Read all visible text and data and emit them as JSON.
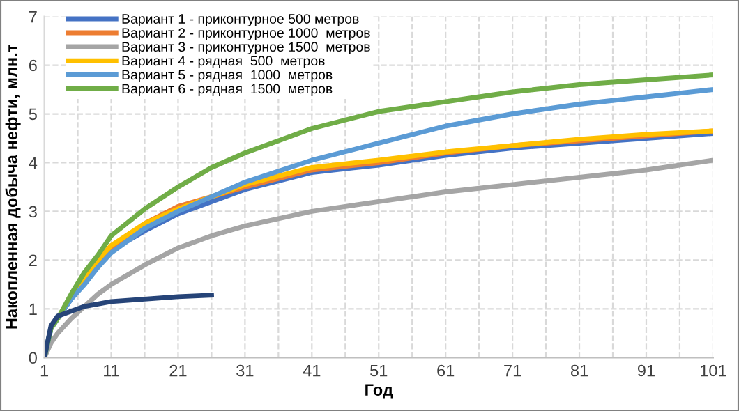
{
  "chart_data": {
    "type": "line",
    "xlabel": "Год",
    "ylabel": "Накопленная добыча нефти, млн.т",
    "x": [
      1,
      2,
      3,
      5,
      7,
      9,
      11,
      16,
      21,
      26,
      31,
      41,
      51,
      61,
      71,
      81,
      91,
      101
    ],
    "series": [
      {
        "name": "Вариант 1 - приконтурное 500 метров",
        "color": "#4472c4",
        "values": [
          0,
          0.6,
          0.8,
          1.2,
          1.55,
          1.9,
          2.2,
          2.6,
          2.95,
          3.2,
          3.45,
          3.8,
          3.95,
          4.15,
          4.3,
          4.4,
          4.5,
          4.6
        ]
      },
      {
        "name": "Вариант 2 - приконтурное 1000  метров",
        "color": "#ed7d31",
        "values": [
          null,
          null,
          null,
          null,
          1.6,
          1.95,
          2.25,
          2.75,
          3.1,
          3.3,
          3.5,
          3.85,
          4.0,
          4.2,
          4.35,
          4.45,
          4.55,
          4.65
        ]
      },
      {
        "name": "Вариант 3 - приконтурное 1500  метров",
        "color": "#a5a5a5",
        "values": [
          0,
          0.3,
          0.5,
          0.8,
          1.05,
          1.3,
          1.5,
          1.9,
          2.25,
          2.5,
          2.7,
          3.0,
          3.2,
          3.4,
          3.55,
          3.7,
          3.85,
          4.05
        ]
      },
      {
        "name": "Вариант 4 - рядная  500  метров",
        "color": "#ffc000",
        "values": [
          null,
          null,
          0.8,
          1.25,
          1.65,
          2.0,
          2.3,
          2.75,
          3.05,
          3.3,
          3.55,
          3.9,
          4.05,
          4.22,
          4.35,
          4.48,
          4.58,
          4.65
        ]
      },
      {
        "name": "Вариант 5 - рядная  1000  метров",
        "color": "#5b9bd5",
        "values": [
          0,
          0.6,
          0.8,
          1.2,
          1.5,
          1.85,
          2.15,
          2.65,
          3.0,
          3.3,
          3.6,
          4.05,
          4.4,
          4.75,
          5.0,
          5.2,
          5.35,
          5.5
        ]
      },
      {
        "name": "Вариант 6 - рядная  1500  метров",
        "color": "#70ad47",
        "values": [
          0,
          0.6,
          0.8,
          1.3,
          1.75,
          2.1,
          2.5,
          3.05,
          3.5,
          3.9,
          4.2,
          4.7,
          5.05,
          5.25,
          5.45,
          5.6,
          5.7,
          5.8
        ]
      },
      {
        "color": "#264478",
        "x": [
          1,
          2,
          3,
          5,
          7,
          9,
          11,
          16,
          21,
          26
        ],
        "values": [
          0,
          0.65,
          0.85,
          0.95,
          1.05,
          1.1,
          1.15,
          1.2,
          1.25,
          1.28
        ]
      }
    ],
    "xlim": [
      1,
      101
    ],
    "ylim": [
      0,
      7
    ],
    "xticks": [
      1,
      {
        "value": 6,
        "label": null
      },
      11,
      {
        "value": 16,
        "label": null
      },
      21,
      {
        "value": 26,
        "label": null
      },
      31,
      {
        "value": 36,
        "label": null
      },
      41,
      {
        "value": 46,
        "label": null
      },
      51,
      {
        "value": 56,
        "label": null
      },
      61,
      {
        "value": 66,
        "label": null
      },
      71,
      {
        "value": 76,
        "label": null
      },
      81,
      {
        "value": 86,
        "label": null
      },
      91,
      {
        "value": 96,
        "label": null
      },
      101
    ],
    "yticks": [
      0,
      1,
      2,
      3,
      4,
      5,
      6,
      7
    ],
    "grid": true,
    "legend": "top left",
    "line_style": "solid",
    "marker": "none"
  }
}
